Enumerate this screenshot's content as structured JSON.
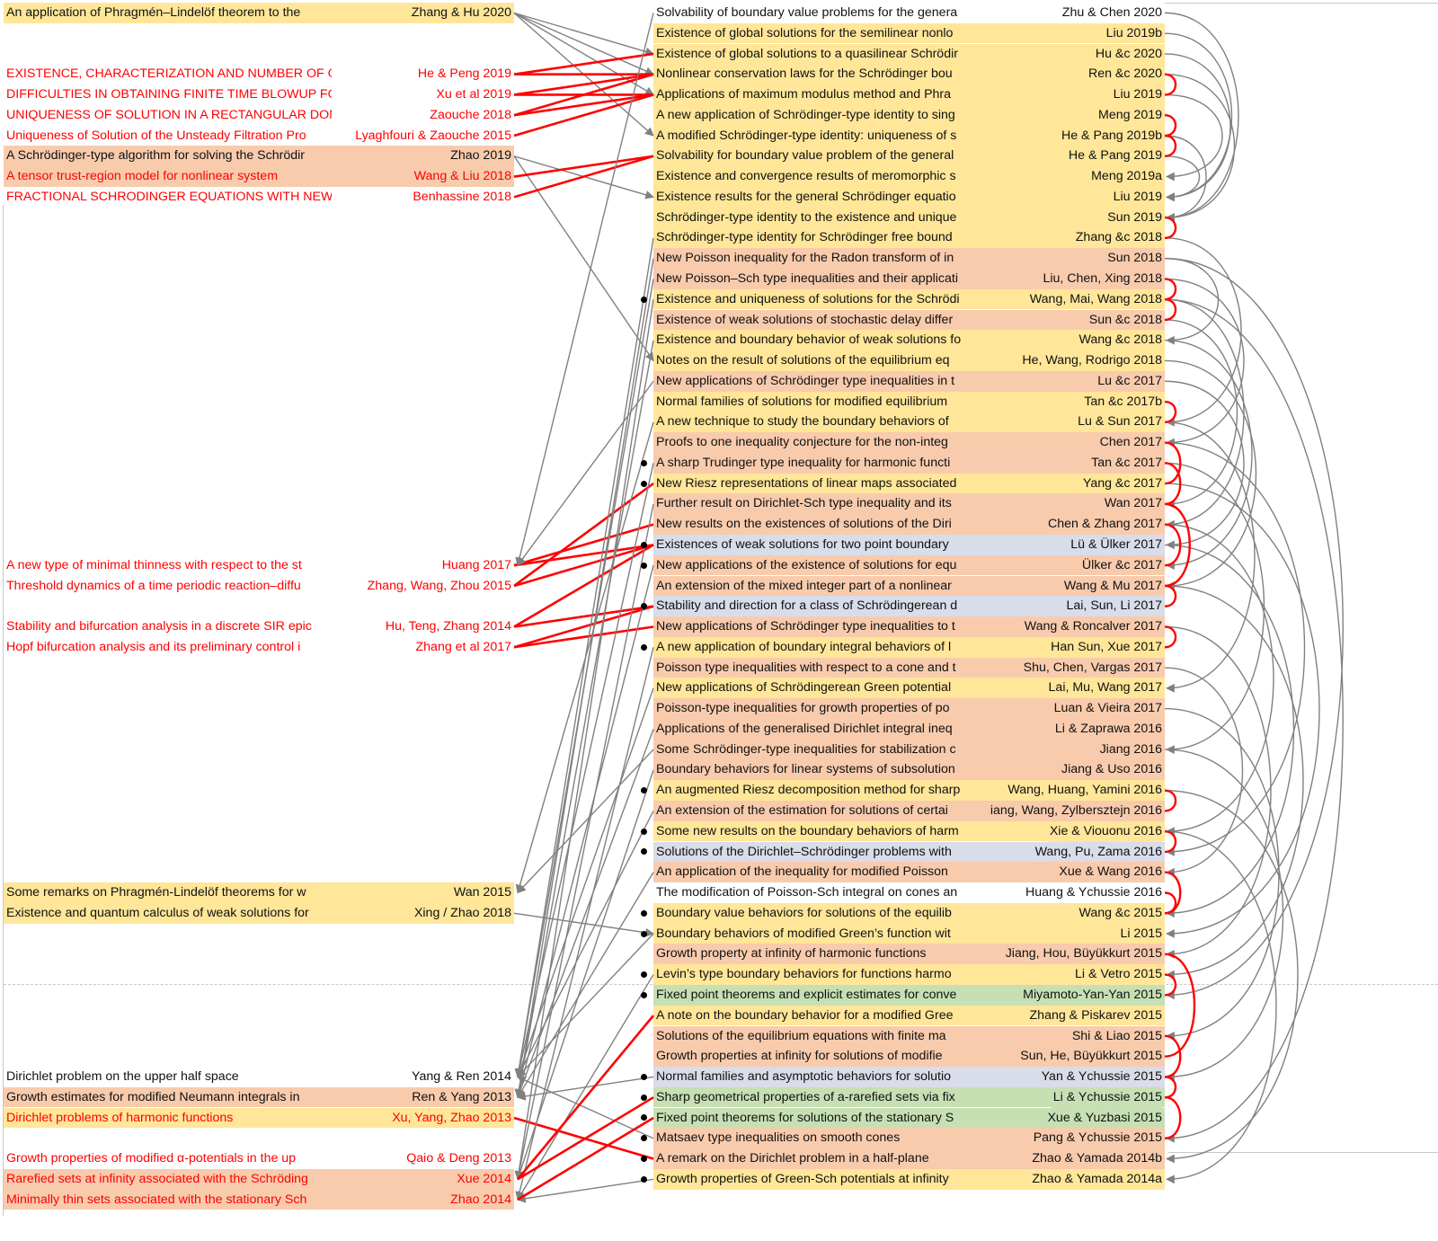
{
  "colors": {
    "yellow": "#ffe699",
    "peach": "#f8cbad",
    "blue": "#d9dce9",
    "green": "#c6e0b4",
    "red_text": "#ff0000",
    "gray_link": "#808080",
    "red_link": "#ff0000"
  },
  "left": {
    "rows": [
      {
        "title": "An application of Phragmén–Lindelöf theorem to the",
        "author": "Zhang & Hu 2020",
        "bg": "yellow"
      },
      {},
      {},
      {
        "title": "EXISTENCE, CHARACTERIZATION AND NUMBER OF GF",
        "author": "He & Peng 2019",
        "red": true
      },
      {
        "title": "DIFFICULTIES IN OBTAINING FINITE TIME BLOWUP FO",
        "author": "Xu et al 2019",
        "red": true
      },
      {
        "title": "UNIQUENESS OF SOLUTION IN A RECTANGULAR DOM",
        "author": "Zaouche 2018",
        "red": true
      },
      {
        "title": "Uniqueness of Solution of the Unsteady Filtration Pro",
        "author": "Lyaghfouri & Zaouche 2015",
        "red": true
      },
      {
        "title": "A Schrödinger-type algorithm for solving the Schrödir",
        "author": "Zhao 2019",
        "bg": "peach"
      },
      {
        "title": "A tensor trust-region model for nonlinear system",
        "author": "Wang & Liu 2018",
        "bg": "peach",
        "red": true
      },
      {
        "title": "FRACTIONAL SCHRODINGER EQUATIONS WITH NEW",
        "author": "Benhassine 2018",
        "red": true
      },
      {},
      {},
      {},
      {},
      {},
      {},
      {},
      {},
      {},
      {},
      {},
      {},
      {},
      {},
      {},
      {},
      {},
      {
        "title": "A new type of minimal thinness with respect to the st",
        "author": "Huang 2017",
        "red": true
      },
      {
        "title": "Threshold dynamics of a time periodic reaction–diffu",
        "author": "Zhang, Wang, Zhou 2015",
        "red": true
      },
      {},
      {
        "title": "Stability and bifurcation analysis in a discrete SIR epic",
        "author": "Hu, Teng, Zhang 2014",
        "red": true
      },
      {
        "title": "Hopf bifurcation analysis and its preliminary control i",
        "author": "Zhang et al 2017",
        "red": true
      },
      {},
      {},
      {},
      {},
      {},
      {},
      {},
      {},
      {},
      {},
      {},
      {
        "title": "Some remarks on Phragmén-Lindelöf theorems for w",
        "author": "Wan 2015",
        "bg": "yellow"
      },
      {
        "title": "Existence and quantum calculus of weak solutions for",
        "author": "Xing / Zhao 2018",
        "bg": "yellow"
      },
      {},
      {},
      {},
      {},
      {},
      {},
      {},
      {
        "title": "Dirichlet problem on the upper half space",
        "author": "Yang & Ren 2014"
      },
      {
        "title": "Growth estimates for modified Neumann integrals in",
        "author": "Ren & Yang 2013",
        "bg": "peach"
      },
      {
        "title": "Dirichlet problems of harmonic functions",
        "author": "Xu, Yang, Zhao 2013",
        "bg": "yellow",
        "red": true
      },
      {},
      {
        "title": "Growth properties of modified α-potentials in the up",
        "author": "Qaio & Deng 2013",
        "red": true
      },
      {
        "title": "Rarefied sets at infinity associated with the Schröding",
        "author": "Xue 2014",
        "bg": "peach",
        "red": true
      },
      {
        "title": "Minimally thin sets associated with the stationary Sch",
        "author": "Zhao 2014",
        "bg": "peach",
        "red": true
      }
    ]
  },
  "right": {
    "rows": [
      {
        "title": "Solvability of boundary value problems for the genera",
        "author": "Zhu & Chen 2020",
        "bg": "white"
      },
      {
        "title": "Existence of global solutions for the semilinear nonlo",
        "author": "Liu 2019b",
        "bg": "yellow"
      },
      {
        "title": "Existence of global solutions to a quasilinear Schrödir",
        "author": "Hu &c 2020",
        "bg": "yellow"
      },
      {
        "title": "Nonlinear conservation laws for the Schrödinger bou",
        "author": "Ren &c 2020",
        "bg": "yellow"
      },
      {
        "title": "Applications of maximum modulus method and Phra",
        "author": "Liu 2019",
        "bg": "yellow"
      },
      {
        "title": "A new application of Schrödinger-type identity to sing",
        "author": "Meng 2019",
        "bg": "yellow"
      },
      {
        "title": "A modified Schrödinger-type identity: uniqueness of s",
        "author": "He & Pang 2019b",
        "bg": "yellow"
      },
      {
        "title": "Solvability for boundary value problem of the general",
        "author": "He & Pang 2019",
        "bg": "yellow"
      },
      {
        "title": "Existence and convergence results of meromorphic s",
        "author": "Meng 2019a",
        "bg": "yellow"
      },
      {
        "title": "Existence results for the general Schrödinger equatio",
        "author": "Liu 2019",
        "bg": "yellow"
      },
      {
        "title": "Schrödinger-type identity to the existence and unique",
        "author": "Sun 2019",
        "bg": "yellow"
      },
      {
        "title": "Schrödinger-type identity for Schrödinger free bound",
        "author": "Zhang &c 2018",
        "bg": "yellow"
      },
      {
        "title": "New Poisson inequality for the Radon transform of in",
        "author": "Sun 2018",
        "bg": "peach"
      },
      {
        "title": "New Poisson–Sch type inequalities and their applicati",
        "author": "Liu, Chen, Xing 2018",
        "bg": "peach"
      },
      {
        "title": "Existence and uniqueness of solutions for the Schrödi",
        "author": "Wang, Mai, Wang 2018",
        "bg": "yellow",
        "marker": true
      },
      {
        "title": "Existence of weak solutions of stochastic delay differ",
        "author": "Sun &c 2018",
        "bg": "peach"
      },
      {
        "title": "Existence and boundary behavior of weak solutions fo",
        "author": "Wang &c 2018",
        "bg": "yellow"
      },
      {
        "title": "Notes on the result of solutions of the equilibrium eq",
        "author": "He, Wang, Rodrigo 2018",
        "bg": "yellow"
      },
      {
        "title": "New applications of Schrödinger type inequalities in t",
        "author": "Lu &c 2017",
        "bg": "peach"
      },
      {
        "title": "Normal families of solutions for modified equilibrium",
        "author": "Tan &c 2017b",
        "bg": "yellow"
      },
      {
        "title": "A new technique to study the boundary behaviors of",
        "author": "Lu & Sun 2017",
        "bg": "yellow"
      },
      {
        "title": "Proofs to one inequality conjecture for the non-integ",
        "author": "Chen 2017",
        "bg": "peach"
      },
      {
        "title": "A sharp Trudinger type inequality for harmonic functi",
        "author": "Tan &c 2017",
        "bg": "peach",
        "marker": true
      },
      {
        "title": "New Riesz representations of linear maps associated",
        "author": "Yang &c 2017",
        "bg": "yellow",
        "marker": true
      },
      {
        "title": "Further result on Dirichlet-Sch type inequality and its",
        "author": "Wan 2017",
        "bg": "peach"
      },
      {
        "title": "New results on the existences of solutions of the Diri",
        "author": "Chen & Zhang 2017",
        "bg": "peach"
      },
      {
        "title": "Existences of weak solutions for two point boundary",
        "author": "Lü & Ülker 2017",
        "bg": "blue",
        "marker": true
      },
      {
        "title": "New applications of the existence of solutions for equ",
        "author": "Ülker &c 2017",
        "bg": "peach",
        "marker": true
      },
      {
        "title": "An extension of the mixed integer part of a nonlinear",
        "author": "Wang & Mu 2017",
        "bg": "peach"
      },
      {
        "title": "Stability and direction for a class of Schrödingerean d",
        "author": "Lai, Sun, Li 2017",
        "bg": "blue",
        "marker": true
      },
      {
        "title": "New applications of Schrödinger type inequalities to t",
        "author": "Wang & Roncalver 2017",
        "bg": "peach"
      },
      {
        "title": "A new application of boundary integral behaviors of l",
        "author": "Han Sun, Xue 2017",
        "bg": "yellow",
        "marker": true
      },
      {
        "title": "Poisson type inequalities with respect to a cone and t",
        "author": "Shu, Chen, Vargas 2017",
        "bg": "peach"
      },
      {
        "title": "New applications of Schrödingerean Green potential",
        "author": "Lai, Mu, Wang 2017",
        "bg": "yellow"
      },
      {
        "title": "Poisson-type inequalities for growth properties of po",
        "author": "Luan & Vieira 2017",
        "bg": "peach"
      },
      {
        "title": "Applications of the generalised Dirichlet integral ineq",
        "author": "Li & Zaprawa 2016",
        "bg": "peach"
      },
      {
        "title": "Some Schrödinger-type inequalities for stabilization c",
        "author": "Jiang 2016",
        "bg": "peach"
      },
      {
        "title": "Boundary behaviors for linear systems of subsolution",
        "author": "Jiang & Uso 2016",
        "bg": "peach"
      },
      {
        "title": "An augmented Riesz decomposition method for sharp",
        "author": "Wang, Huang, Yamini 2016",
        "bg": "yellow",
        "marker": true
      },
      {
        "title": "An extension of the estimation for solutions of certai",
        "author": "iang, Wang, Zylbersztejn 2016",
        "bg": "peach"
      },
      {
        "title": "Some new results on the boundary behaviors of harm",
        "author": "Xie & Viouonu 2016",
        "bg": "yellow",
        "marker": true
      },
      {
        "title": "Solutions of the Dirichlet–Schrödinger problems with",
        "author": "Wang, Pu, Zama 2016",
        "bg": "blue",
        "marker": true
      },
      {
        "title": "An application of the inequality for modified Poisson",
        "author": "Xue & Wang 2016",
        "bg": "peach"
      },
      {
        "title": "The modification of Poisson-Sch integral on cones an",
        "author": "Huang & Ychussie 2016",
        "bg": "white"
      },
      {
        "title": "Boundary value behaviors for solutions of the equilib",
        "author": "Wang &c 2015",
        "bg": "yellow",
        "marker": true
      },
      {
        "title": "Boundary behaviors of modified Green’s function wit",
        "author": "Li 2015",
        "bg": "yellow",
        "marker": true
      },
      {
        "title": "Growth property at infinity of harmonic functions",
        "author": "Jiang, Hou, Büyükkurt 2015",
        "bg": "peach"
      },
      {
        "title": "Levin’s type boundary behaviors for functions harmo",
        "author": "Li & Vetro 2015",
        "bg": "yellow",
        "marker": true
      },
      {
        "title": "Fixed point theorems and explicit estimates for conve",
        "author": "Miyamoto-Yan-Yan 2015",
        "bg": "green",
        "marker": true
      },
      {
        "title": "A note on the boundary behavior for a modified Gree",
        "author": "Zhang & Piskarev 2015",
        "bg": "yellow"
      },
      {
        "title": "Solutions of the equilibrium equations with finite ma",
        "author": "Shi & Liao 2015",
        "bg": "peach"
      },
      {
        "title": "Growth properties at infinity for solutions of modifie",
        "author": "Sun, He, Büyükkurt 2015",
        "bg": "peach"
      },
      {
        "title": "Normal families and asymptotic behaviors for solutio",
        "author": "Yan & Ychussie 2015",
        "bg": "blue",
        "marker": true
      },
      {
        "title": "Sharp geometrical properties of a-rarefied sets via fix",
        "author": "Li & Ychussie 2015",
        "bg": "green",
        "marker": true
      },
      {
        "title": "Fixed point theorems for solutions of the stationary S",
        "author": "Xue & Yuzbasi 2015",
        "bg": "green",
        "marker": true
      },
      {
        "title": "Matsaev type inequalities on smooth cones",
        "author": "Pang & Ychussie 2015",
        "bg": "peach",
        "marker": true
      },
      {
        "title": "A remark on the Dirichlet problem in a half-plane",
        "author": "Zhao & Yamada 2014b",
        "bg": "peach",
        "marker": true
      },
      {
        "title": "Growth properties of Green-Sch potentials at infinity",
        "author": "Zhao & Yamada 2014a",
        "bg": "yellow",
        "marker": true
      }
    ]
  },
  "links": {
    "left_to_right_gray": [
      [
        0,
        3
      ],
      [
        0,
        4
      ],
      [
        0,
        6
      ],
      [
        0,
        2
      ],
      [
        7,
        9
      ],
      [
        7,
        17
      ],
      [
        44,
        45
      ]
    ],
    "left_to_right_red": [
      [
        3,
        2
      ],
      [
        3,
        3
      ],
      [
        4,
        3
      ],
      [
        4,
        4
      ],
      [
        5,
        3
      ],
      [
        5,
        4
      ],
      [
        6,
        4
      ],
      [
        8,
        7
      ],
      [
        9,
        7
      ],
      [
        27,
        26
      ],
      [
        27,
        25
      ],
      [
        28,
        26
      ],
      [
        28,
        23
      ],
      [
        30,
        26
      ],
      [
        30,
        29
      ],
      [
        31,
        30
      ],
      [
        31,
        29
      ],
      [
        54,
        56
      ]
    ],
    "right_to_left_gray": [
      [
        11,
        52
      ],
      [
        12,
        53
      ],
      [
        13,
        52
      ],
      [
        14,
        57
      ],
      [
        16,
        53
      ],
      [
        18,
        27
      ],
      [
        20,
        43
      ],
      [
        22,
        52
      ],
      [
        24,
        57
      ],
      [
        27,
        53
      ],
      [
        31,
        58
      ],
      [
        33,
        52
      ],
      [
        35,
        53
      ],
      [
        36,
        43
      ],
      [
        37,
        57
      ],
      [
        39,
        52
      ],
      [
        42,
        53
      ],
      [
        45,
        52
      ],
      [
        47,
        58
      ],
      [
        49,
        57
      ],
      [
        52,
        53
      ],
      [
        55,
        52
      ],
      [
        57,
        58
      ],
      [
        0,
        27
      ]
    ],
    "right_to_left_red": [
      [
        49,
        57
      ],
      [
        53,
        57
      ],
      [
        54,
        58
      ]
    ],
    "right_arcs_gray": [
      [
        0,
        10
      ],
      [
        1,
        9
      ],
      [
        2,
        9
      ],
      [
        3,
        10
      ],
      [
        4,
        8
      ],
      [
        6,
        10
      ],
      [
        7,
        9
      ],
      [
        11,
        20
      ],
      [
        12,
        16
      ],
      [
        13,
        21
      ],
      [
        14,
        25
      ],
      [
        15,
        24
      ],
      [
        16,
        27
      ],
      [
        17,
        28
      ],
      [
        18,
        26
      ],
      [
        20,
        33
      ],
      [
        22,
        36
      ],
      [
        25,
        40
      ],
      [
        26,
        44
      ],
      [
        28,
        47
      ],
      [
        30,
        46
      ],
      [
        32,
        42
      ],
      [
        34,
        50
      ],
      [
        36,
        52
      ],
      [
        38,
        56
      ],
      [
        40,
        57
      ],
      [
        12,
        48
      ],
      [
        14,
        55
      ],
      [
        21,
        41
      ],
      [
        23,
        45
      ]
    ],
    "right_arcs_red": [
      [
        4,
        3
      ],
      [
        5,
        6
      ],
      [
        7,
        6
      ],
      [
        10,
        11
      ],
      [
        13,
        14
      ],
      [
        15,
        14
      ],
      [
        19,
        20
      ],
      [
        21,
        23
      ],
      [
        22,
        24
      ],
      [
        24,
        28
      ],
      [
        25,
        27
      ],
      [
        28,
        29
      ],
      [
        30,
        31
      ],
      [
        38,
        39
      ],
      [
        40,
        41
      ],
      [
        42,
        44
      ],
      [
        43,
        44
      ],
      [
        46,
        51
      ],
      [
        47,
        48
      ],
      [
        50,
        52
      ],
      [
        52,
        53
      ],
      [
        53,
        55
      ]
    ]
  }
}
